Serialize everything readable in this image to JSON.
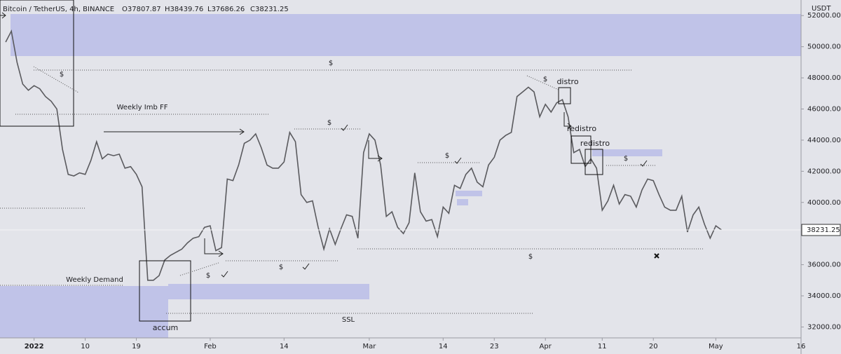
{
  "chart_data": {
    "type": "line",
    "title": "Bitcoin / TetherUS, 4h, BINANCE",
    "ohlc": [
      "O37807.87",
      "H38439.76",
      "L37686.26",
      "C38231.25"
    ],
    "currency": "USDT",
    "last_price": 38231.25,
    "annotations": [
      "$",
      "Weekly Imb FF",
      "$",
      "$",
      "$",
      "$",
      "$",
      "$",
      "$",
      "$",
      "distro",
      "redistro",
      "redistro",
      "Weekly Demand",
      "accum",
      "SSL"
    ],
    "series": [
      {
        "name": "BTCUSDT",
        "color": "#5a5a5e",
        "x": [
          "2021-12-27",
          "2021-12-28",
          "2021-12-29",
          "2021-12-30",
          "2021-12-31",
          "2022-01-01",
          "2022-01-02",
          "2022-01-03",
          "2022-01-04",
          "2022-01-05",
          "2022-01-06",
          "2022-01-07",
          "2022-01-08",
          "2022-01-09",
          "2022-01-10",
          "2022-01-11",
          "2022-01-12",
          "2022-01-13",
          "2022-01-14",
          "2022-01-15",
          "2022-01-16",
          "2022-01-17",
          "2022-01-18",
          "2022-01-19",
          "2022-01-20",
          "2022-01-21",
          "2022-01-22",
          "2022-01-23",
          "2022-01-24",
          "2022-01-25",
          "2022-01-26",
          "2022-01-27",
          "2022-01-28",
          "2022-01-29",
          "2022-01-30",
          "2022-01-31",
          "2022-02-01",
          "2022-02-02",
          "2022-02-03",
          "2022-02-04",
          "2022-02-05",
          "2022-02-06",
          "2022-02-07",
          "2022-02-08",
          "2022-02-09",
          "2022-02-10",
          "2022-02-11",
          "2022-02-12",
          "2022-02-13",
          "2022-02-14",
          "2022-02-15",
          "2022-02-16",
          "2022-02-17",
          "2022-02-18",
          "2022-02-19",
          "2022-02-20",
          "2022-02-21",
          "2022-02-22",
          "2022-02-23",
          "2022-02-24",
          "2022-02-25",
          "2022-02-26",
          "2022-02-27",
          "2022-02-28",
          "2022-03-01",
          "2022-03-02",
          "2022-03-03",
          "2022-03-04",
          "2022-03-05",
          "2022-03-06",
          "2022-03-07",
          "2022-03-08",
          "2022-03-09",
          "2022-03-10",
          "2022-03-11",
          "2022-03-12",
          "2022-03-13",
          "2022-03-14",
          "2022-03-15",
          "2022-03-16",
          "2022-03-17",
          "2022-03-18",
          "2022-03-19",
          "2022-03-20",
          "2022-03-21",
          "2022-03-22",
          "2022-03-23",
          "2022-03-24",
          "2022-03-25",
          "2022-03-26",
          "2022-03-27",
          "2022-03-28",
          "2022-03-29",
          "2022-03-30",
          "2022-03-31",
          "2022-04-01",
          "2022-04-02",
          "2022-04-03",
          "2022-04-04",
          "2022-04-05",
          "2022-04-06",
          "2022-04-07",
          "2022-04-08",
          "2022-04-09",
          "2022-04-10",
          "2022-04-11",
          "2022-04-12",
          "2022-04-13",
          "2022-04-14",
          "2022-04-15",
          "2022-04-16",
          "2022-04-17",
          "2022-04-18",
          "2022-04-19",
          "2022-04-20",
          "2022-04-21",
          "2022-04-22",
          "2022-04-23",
          "2022-04-24",
          "2022-04-25",
          "2022-04-26",
          "2022-04-27",
          "2022-04-28",
          "2022-04-29",
          "2022-04-30",
          "2022-05-01",
          "2022-05-02"
        ],
        "values": [
          50300,
          51000,
          49000,
          47600,
          47200,
          47500,
          47300,
          46800,
          46500,
          46000,
          43400,
          41800,
          41700,
          41900,
          41800,
          42700,
          43900,
          42800,
          43100,
          43000,
          43100,
          42200,
          42300,
          41800,
          41000,
          35000,
          35000,
          35300,
          36300,
          36600,
          36800,
          37000,
          37400,
          37700,
          37800,
          38400,
          38500,
          36900,
          37100,
          41500,
          41400,
          42400,
          43800,
          44000,
          44400,
          43500,
          42400,
          42200,
          42200,
          42600,
          44500,
          43900,
          40500,
          40000,
          40100,
          38400,
          37000,
          38300,
          37300,
          38300,
          39200,
          39100,
          37700,
          43200,
          44400,
          44000,
          42400,
          39100,
          39400,
          38400,
          38000,
          38700,
          41900,
          39400,
          38800,
          38900,
          37800,
          39700,
          39300,
          41100,
          40900,
          41800,
          42200,
          41300,
          41000,
          42400,
          42900,
          44000,
          44300,
          44500,
          46800,
          47100,
          47400,
          47100,
          45500,
          46300,
          45800,
          46400,
          46600,
          45500,
          43200,
          43400,
          42300,
          42800,
          42200,
          39500,
          40100,
          41100,
          39900,
          40500,
          40400,
          39700,
          40800,
          41500,
          41400,
          40500,
          39700,
          39500,
          39500,
          40400,
          38100,
          39200,
          39700,
          38600,
          37700,
          38500,
          38231.25
        ]
      }
    ],
    "xlim": [
      "2021-12-26",
      "2022-05-16"
    ],
    "xticks": [
      {
        "value": "2022-01-01",
        "label": "2022"
      },
      {
        "value": "2022-01-10",
        "label": "10"
      },
      {
        "value": "2022-01-19",
        "label": "19"
      },
      {
        "value": "2022-02-01",
        "label": "Feb"
      },
      {
        "value": "2022-02-14",
        "label": "14"
      },
      {
        "value": "2022-03-01",
        "label": "Mar"
      },
      {
        "value": "2022-03-14",
        "label": "14"
      },
      {
        "value": "2022-03-23",
        "label": "23"
      },
      {
        "value": "2022-04-01",
        "label": "Apr"
      },
      {
        "value": "2022-04-11",
        "label": "11"
      },
      {
        "value": "2022-04-20",
        "label": "20"
      },
      {
        "value": "2022-05-01",
        "label": "May"
      },
      {
        "value": "2022-05-16",
        "label": "16"
      }
    ],
    "ylim": [
      31300,
      53000
    ],
    "yticks": [
      {
        "value": 32000,
        "label": "32000.00"
      },
      {
        "value": 34000,
        "label": "34000.00"
      },
      {
        "value": 36000,
        "label": "36000.00"
      },
      {
        "value": 38000,
        "label": "38000.00"
      },
      {
        "value": 40000,
        "label": "40000.00"
      },
      {
        "value": 42000,
        "label": "42000.00"
      },
      {
        "value": 44000,
        "label": "44000.00"
      },
      {
        "value": 46000,
        "label": "46000.00"
      },
      {
        "value": 48000,
        "label": "48000.00"
      },
      {
        "value": 50000,
        "label": "50000.00"
      },
      {
        "value": 52000,
        "label": "52000.00"
      }
    ],
    "grid": false
  }
}
